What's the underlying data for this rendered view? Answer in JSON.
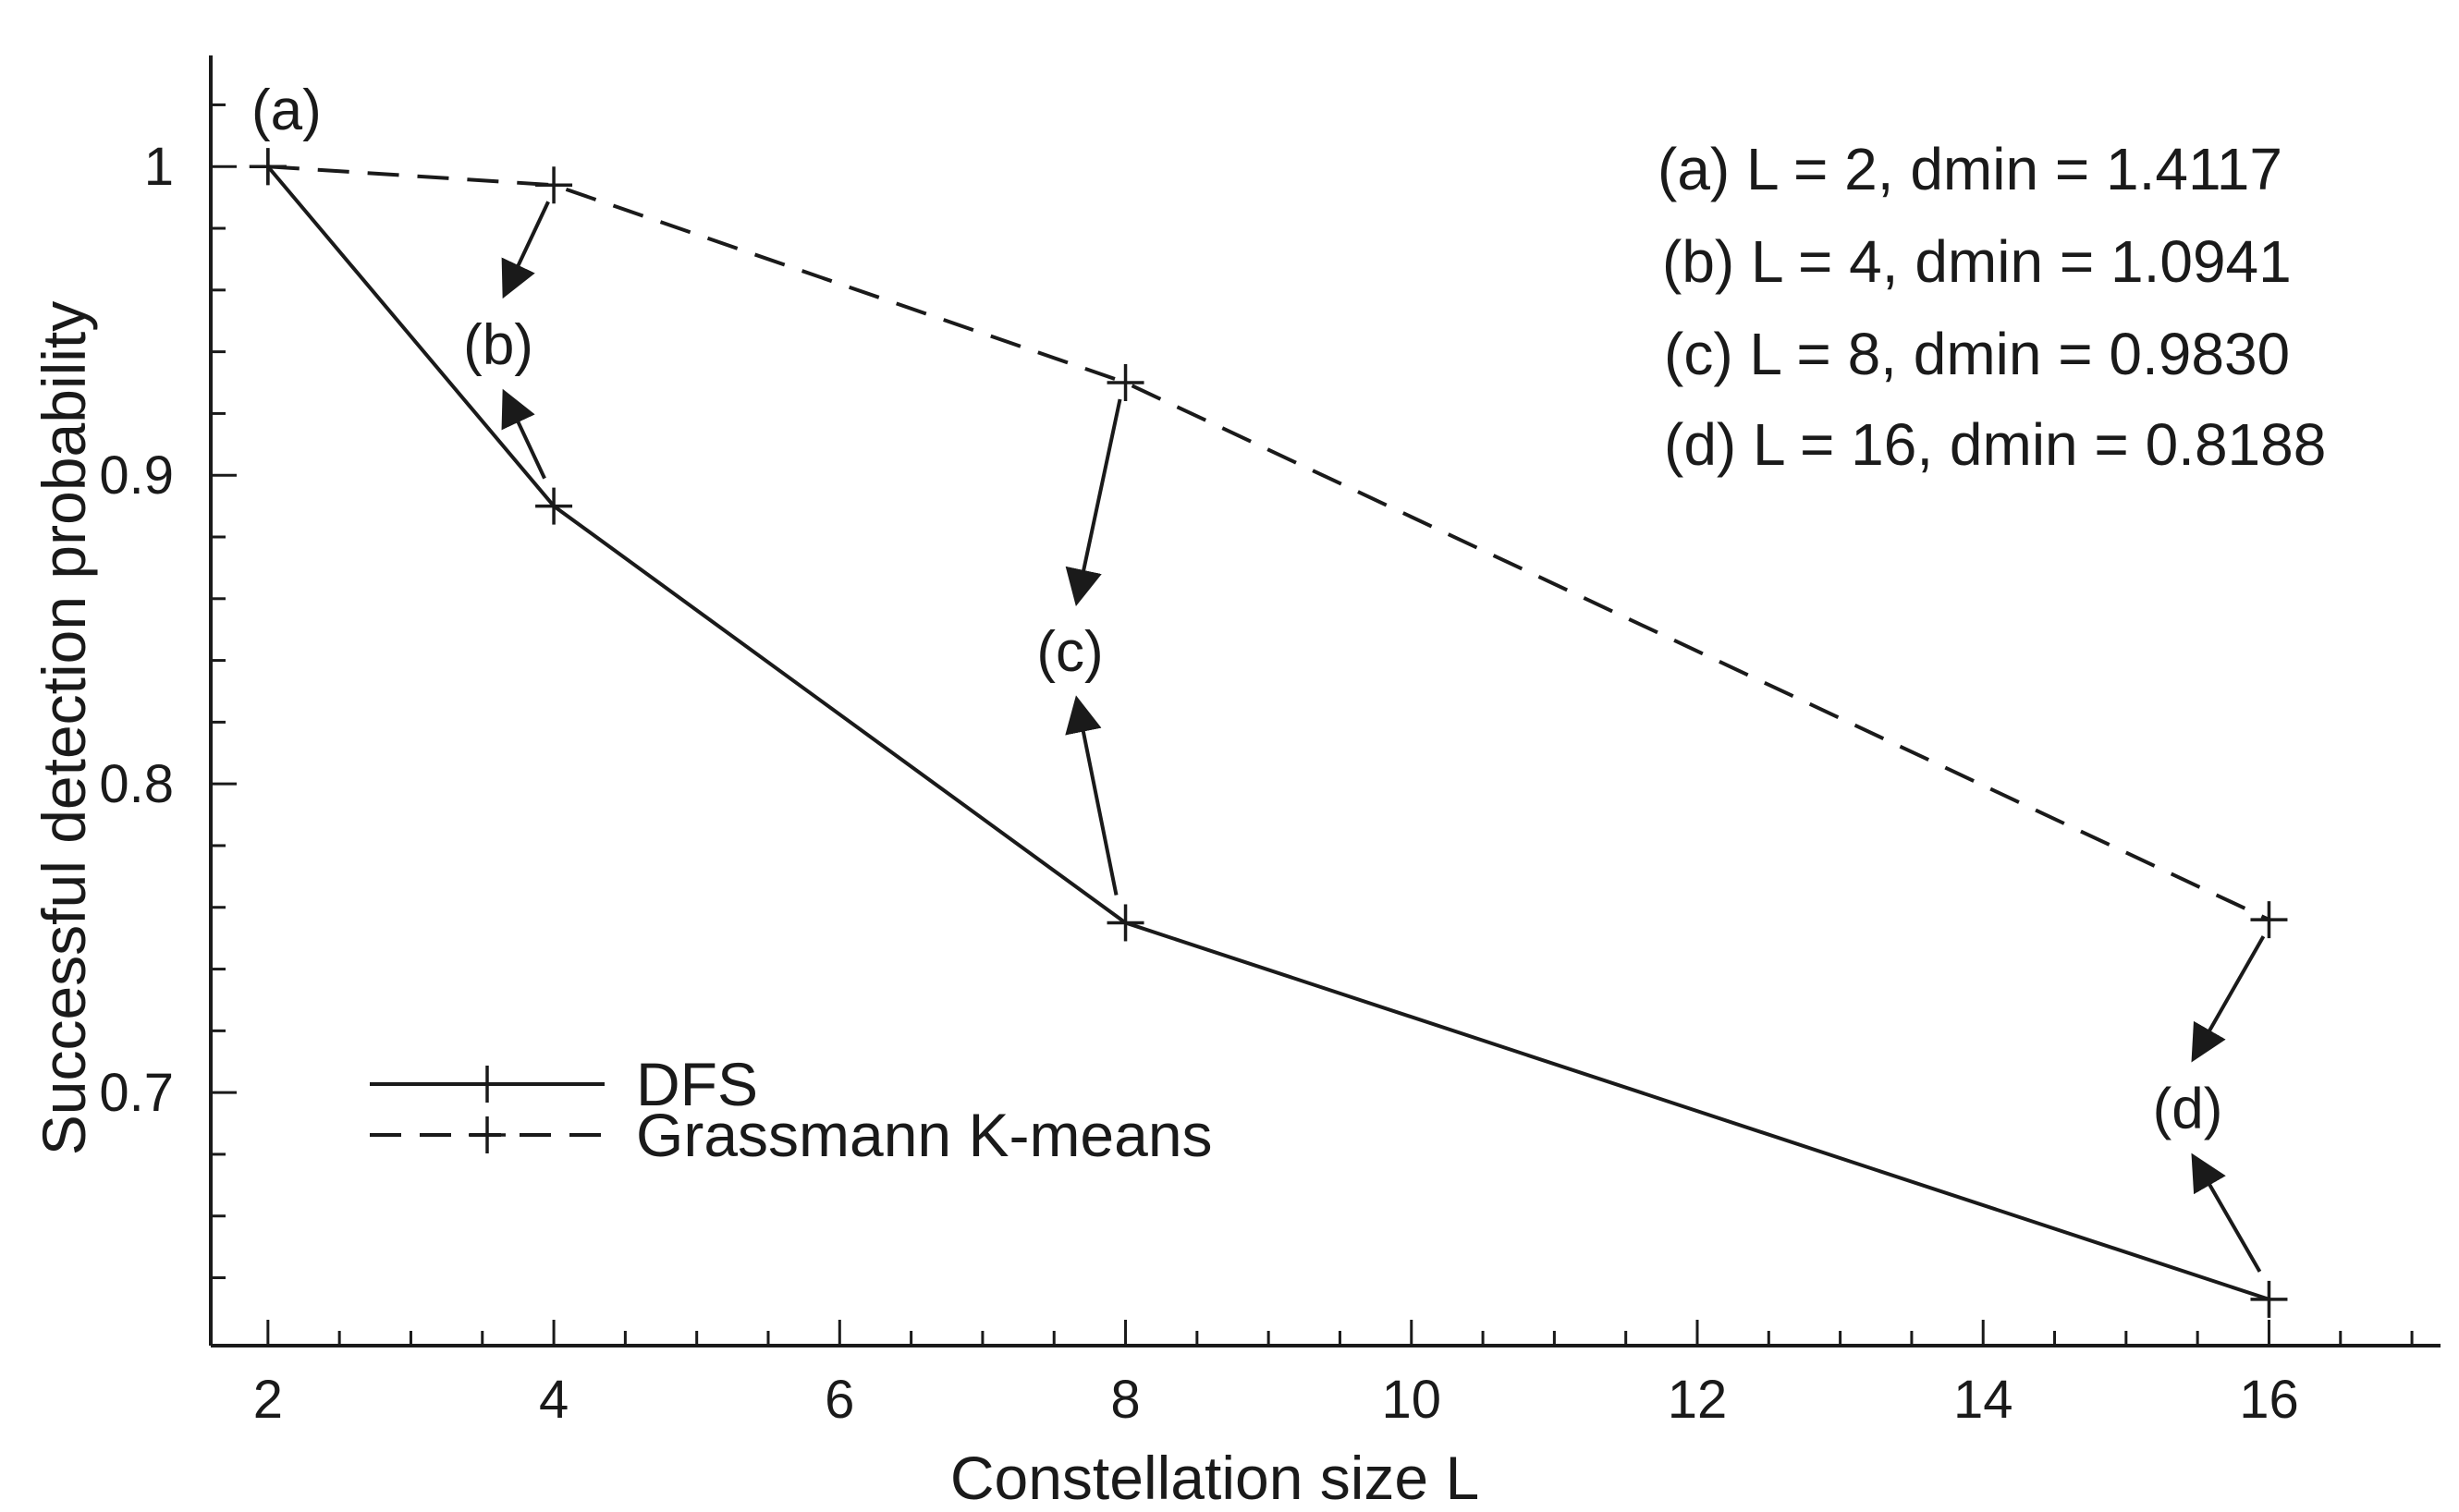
{
  "chart_data": {
    "type": "line",
    "xlabel": "Constellation size L",
    "ylabel": "Successful detection probability",
    "x_ticks": [
      2,
      4,
      6,
      8,
      10,
      12,
      14,
      16
    ],
    "y_ticks": [
      0.7,
      0.8,
      0.9,
      1
    ],
    "xlim": [
      1.6,
      17.2
    ],
    "ylim": [
      0.618,
      1.036
    ],
    "grid": false,
    "legend_position": "bottom-left",
    "series": [
      {
        "name": "DFS",
        "style": "solid",
        "x": [
          2,
          4,
          8,
          16
        ],
        "y": [
          1.0,
          0.89,
          0.755,
          0.633
        ]
      },
      {
        "name": "Grassmann K-means",
        "style": "dashed",
        "x": [
          2,
          4,
          8,
          16
        ],
        "y": [
          1.0,
          0.994,
          0.93,
          0.756
        ]
      }
    ],
    "info_lines": [
      "(a) L = 2, dmin = 1.4117",
      "(b) L = 4, dmin = 1.0941",
      "(c) L = 8, dmin = 0.9830",
      "(d) L = 16, dmin = 0.8188"
    ],
    "annotations": [
      {
        "label": "(a)",
        "x": 2
      },
      {
        "label": "(b)",
        "x": 4
      },
      {
        "label": "(c)",
        "x": 8
      },
      {
        "label": "(d)",
        "x": 16
      }
    ]
  },
  "colors": {
    "ink": "#1a1a1a",
    "background": "#ffffff"
  }
}
